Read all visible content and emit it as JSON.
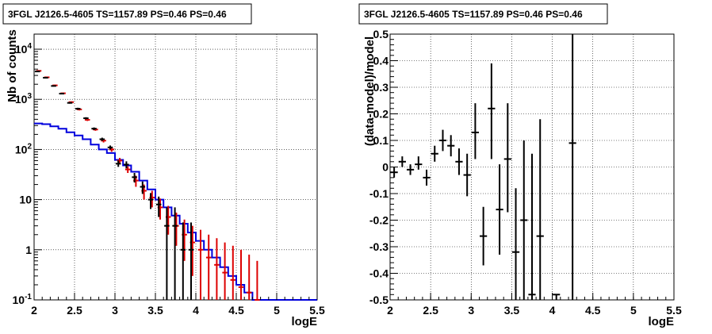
{
  "chart_data": [
    {
      "type": "histogram",
      "title": "3FGL J2126.5-4605 TS=1157.89 PS=0.46 PS=0.46",
      "xlabel": "logE",
      "ylabel": "Nb of counts",
      "xlim": [
        2,
        5.5
      ],
      "ylim": [
        0.1,
        20000
      ],
      "yscale": "log",
      "grid": true,
      "xticks": [
        "2",
        "2.5",
        "3",
        "3.5",
        "4",
        "4.5",
        "5",
        "5.5"
      ],
      "yticks": [
        "10^4",
        "10^3",
        "10^2",
        "10",
        "1",
        "10^-1"
      ],
      "ytick_values": [
        10000,
        1000,
        100,
        10,
        1,
        0.1
      ],
      "colors": {
        "data": "#000000",
        "fit": "#dd0000",
        "model": "#0000dd"
      },
      "bin_edges": [
        2.0,
        2.1,
        2.2,
        2.3,
        2.4,
        2.5,
        2.6,
        2.7,
        2.8,
        2.9,
        3.0,
        3.1,
        3.2,
        3.3,
        3.4,
        3.5,
        3.6,
        3.7,
        3.8,
        3.9,
        4.0,
        4.1,
        4.2,
        4.3,
        4.4,
        4.5,
        4.6,
        4.7,
        4.8
      ],
      "series": [
        {
          "color": "#000000",
          "x": [
            2.05,
            2.15,
            2.25,
            2.35,
            2.45,
            2.55,
            2.65,
            2.75,
            2.85,
            2.95,
            3.05,
            3.15,
            3.25,
            3.35,
            3.45,
            3.55,
            3.65,
            3.75,
            3.85,
            3.95
          ],
          "y": [
            3600,
            2700,
            1850,
            1300,
            850,
            650,
            420,
            260,
            160,
            110,
            52,
            50,
            28,
            18,
            10,
            8,
            3,
            3,
            1,
            1
          ],
          "ylo": [
            3500,
            2620,
            1800,
            1260,
            820,
            620,
            400,
            245,
            148,
            100,
            45,
            42,
            22,
            13,
            6.5,
            4.5,
            0.1,
            0.1,
            0.1,
            0.1
          ],
          "yhi": [
            3700,
            2780,
            1900,
            1340,
            880,
            680,
            440,
            275,
            172,
            120,
            60,
            58,
            34,
            23,
            13.5,
            11.5,
            7,
            7,
            3.5,
            3.5
          ]
        },
        {
          "color": "#dd0000",
          "x": [
            2.05,
            2.15,
            2.25,
            2.35,
            2.45,
            2.55,
            2.65,
            2.75,
            2.85,
            2.95,
            3.05,
            3.15,
            3.25,
            3.35,
            3.45,
            3.55,
            3.65,
            3.75,
            3.85,
            3.95,
            4.05,
            4.15,
            4.25,
            4.35,
            4.45,
            4.55,
            4.65,
            4.75
          ],
          "y": [
            3700,
            2750,
            1900,
            1320,
            880,
            630,
            390,
            250,
            150,
            100,
            60,
            40,
            24,
            15,
            11,
            7,
            4.5,
            3,
            2,
            1.4,
            1,
            0.7,
            0.5,
            0.35,
            0.25,
            0.18,
            0.14,
            0.1
          ],
          "ylo": [
            3600,
            2670,
            1840,
            1280,
            850,
            600,
            370,
            236,
            138,
            90,
            52,
            34,
            18,
            10,
            7,
            4,
            2,
            1.2,
            0.6,
            0.3,
            0.1,
            0.1,
            0.1,
            0.1,
            0.1,
            0.1,
            0.1,
            0.1
          ],
          "yhi": [
            3800,
            2830,
            1960,
            1360,
            910,
            660,
            410,
            264,
            162,
            110,
            68,
            46,
            30,
            20,
            15,
            10.5,
            7.5,
            5.5,
            4,
            3,
            2.5,
            2,
            1.7,
            1.4,
            1.2,
            1,
            0.8,
            0.6
          ]
        },
        {
          "color": "#0000dd",
          "step_values": [
            330,
            320,
            290,
            260,
            220,
            190,
            160,
            125,
            100,
            85,
            62,
            48,
            36,
            24,
            16,
            10,
            7,
            4.8,
            3.3,
            2.2,
            1.5,
            1.0,
            0.7,
            0.45,
            0.3,
            0.2,
            0.14,
            0.1
          ]
        }
      ]
    },
    {
      "type": "scatter",
      "title": "3FGL J2126.5-4605 TS=1157.89 PS=0.46 PS=0.46",
      "xlabel": "logE",
      "ylabel": "(data-model)/model",
      "xlim": [
        2,
        5.5
      ],
      "ylim": [
        -0.5,
        0.5
      ],
      "grid": true,
      "xticks": [
        "2",
        "2.5",
        "3",
        "3.5",
        "4",
        "4.5",
        "5",
        "5.5"
      ],
      "yticks": [
        "0.5",
        "0.4",
        "0.3",
        "0.2",
        "0.1",
        "0",
        "-0.1",
        "-0.2",
        "-0.3",
        "-0.4",
        "-0.5"
      ],
      "ytick_values": [
        0.5,
        0.4,
        0.3,
        0.2,
        0.1,
        0,
        -0.1,
        -0.2,
        -0.3,
        -0.4,
        -0.5
      ],
      "color": "#000000",
      "points": [
        {
          "x": 2.05,
          "y": -0.02,
          "lo": -0.04,
          "hi": 0.0
        },
        {
          "x": 2.15,
          "y": 0.02,
          "lo": 0.0,
          "hi": 0.04
        },
        {
          "x": 2.25,
          "y": -0.01,
          "lo": -0.03,
          "hi": 0.01
        },
        {
          "x": 2.35,
          "y": 0.01,
          "lo": -0.01,
          "hi": 0.04
        },
        {
          "x": 2.45,
          "y": -0.04,
          "lo": -0.07,
          "hi": -0.01
        },
        {
          "x": 2.55,
          "y": 0.05,
          "lo": 0.02,
          "hi": 0.08
        },
        {
          "x": 2.65,
          "y": 0.1,
          "lo": 0.06,
          "hi": 0.14
        },
        {
          "x": 2.75,
          "y": 0.08,
          "lo": 0.04,
          "hi": 0.12
        },
        {
          "x": 2.85,
          "y": 0.02,
          "lo": -0.03,
          "hi": 0.07
        },
        {
          "x": 2.95,
          "y": -0.03,
          "lo": -0.11,
          "hi": 0.05
        },
        {
          "x": 3.05,
          "y": 0.13,
          "lo": 0.03,
          "hi": 0.24
        },
        {
          "x": 3.15,
          "y": -0.26,
          "lo": -0.37,
          "hi": -0.15
        },
        {
          "x": 3.25,
          "y": 0.22,
          "lo": 0.03,
          "hi": 0.39
        },
        {
          "x": 3.35,
          "y": -0.16,
          "lo": -0.33,
          "hi": 0.01
        },
        {
          "x": 3.45,
          "y": 0.03,
          "lo": -0.17,
          "hi": 0.24
        },
        {
          "x": 3.55,
          "y": -0.32,
          "lo": -0.5,
          "hi": -0.08
        },
        {
          "x": 3.65,
          "y": -0.2,
          "lo": -0.5,
          "hi": 0.1
        },
        {
          "x": 3.75,
          "y": -0.48,
          "lo": -0.5,
          "hi": 0.05
        },
        {
          "x": 3.85,
          "y": -0.26,
          "lo": -0.5,
          "hi": 0.18
        },
        {
          "x": 4.05,
          "y": -0.48,
          "lo": -0.5,
          "hi": -0.48
        },
        {
          "x": 4.25,
          "y": 0.09,
          "lo": -0.5,
          "hi": 0.5
        }
      ]
    }
  ]
}
